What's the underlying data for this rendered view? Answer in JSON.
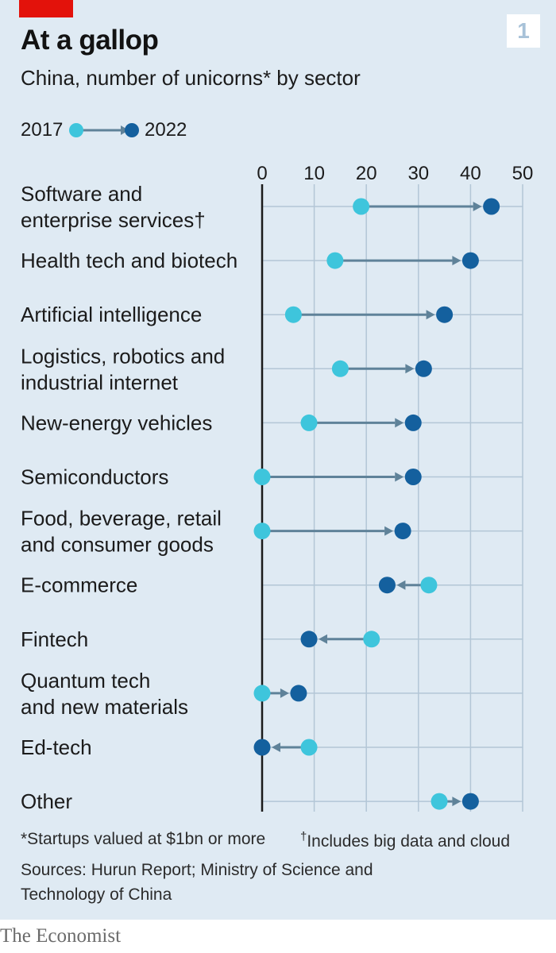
{
  "chart_number": "1",
  "brand": "The Economist",
  "legend": {
    "start": "2017",
    "end": "2022"
  },
  "footnotes": {
    "note1": "*Startups valued at $1bn or more",
    "note2_mark": "†",
    "note2": "Includes big data and cloud",
    "sources": "Sources: Hurun Report; Ministry of Science and Technology of China"
  },
  "colors": {
    "start": "#3ec5dc",
    "end": "#14609e",
    "arrow": "#5f8299",
    "background": "#dfeaf3",
    "accent": "#e3120b"
  },
  "chart_data": {
    "type": "dumbbell-arrow",
    "title": "At a gallop",
    "subtitle": "China, number of unicorns* by sector",
    "series": [
      {
        "name": "2017",
        "key": "v2017"
      },
      {
        "name": "2022",
        "key": "v2022"
      }
    ],
    "xlim": [
      0,
      50
    ],
    "xticks": [
      "0",
      "10",
      "20",
      "30",
      "40",
      "50"
    ],
    "grid": true,
    "categories": [
      {
        "lines": [
          "Software and",
          "enterprise services†"
        ],
        "v2017": 19,
        "v2022": 44
      },
      {
        "lines": [
          "Health tech and biotech"
        ],
        "v2017": 14,
        "v2022": 40
      },
      {
        "lines": [
          "Artificial intelligence"
        ],
        "v2017": 6,
        "v2022": 35
      },
      {
        "lines": [
          "Logistics, robotics and",
          "industrial internet"
        ],
        "v2017": 15,
        "v2022": 31
      },
      {
        "lines": [
          "New-energy vehicles"
        ],
        "v2017": 9,
        "v2022": 29
      },
      {
        "lines": [
          "Semiconductors"
        ],
        "v2017": 0,
        "v2022": 29
      },
      {
        "lines": [
          "Food, beverage, retail",
          "and consumer goods"
        ],
        "v2017": 0,
        "v2022": 27
      },
      {
        "lines": [
          "E-commerce"
        ],
        "v2017": 32,
        "v2022": 24
      },
      {
        "lines": [
          "Fintech"
        ],
        "v2017": 21,
        "v2022": 9
      },
      {
        "lines": [
          "Quantum tech",
          "and new materials"
        ],
        "v2017": 0,
        "v2022": 7
      },
      {
        "lines": [
          "Ed-tech"
        ],
        "v2017": 9,
        "v2022": 0
      },
      {
        "lines": [
          "Other"
        ],
        "v2017": 34,
        "v2022": 40
      }
    ]
  }
}
